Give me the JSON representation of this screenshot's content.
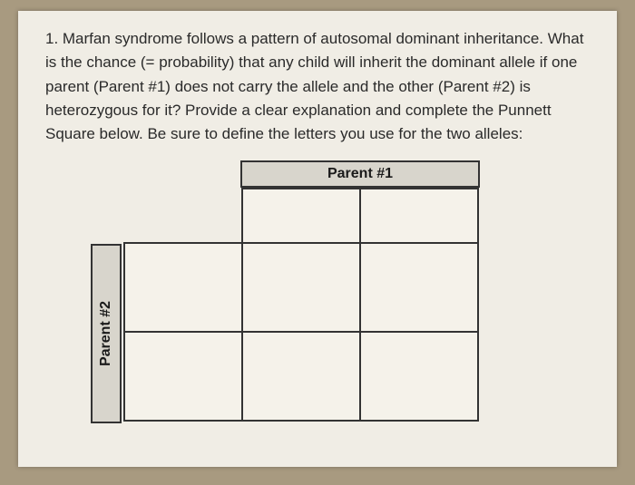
{
  "question": {
    "text": "1. Marfan syndrome follows a pattern of autosomal dominant inheritance. What is the chance (= probability) that any child will inherit the dominant allele if one parent (Parent #1) does not carry the allele and the other (Parent #2) is heterozygous for it? Provide a clear explanation and complete the Punnett Square below. Be sure to define the letters you use for the two alleles:"
  },
  "punnett": {
    "parent1_label": "Parent #1",
    "parent2_label": "Parent #2",
    "parent1_alleles": [
      "",
      ""
    ],
    "parent2_alleles": [
      "",
      ""
    ],
    "offspring": [
      [
        "",
        ""
      ],
      [
        "",
        ""
      ]
    ]
  },
  "styling": {
    "background_color": "#a89a80",
    "page_color": "#f0ede5",
    "header_bg": "#d8d5cc",
    "cell_bg": "#f5f2ea",
    "border_color": "#333333",
    "text_color": "#2a2a2a",
    "font_size_body": 17,
    "font_size_label": 16
  }
}
